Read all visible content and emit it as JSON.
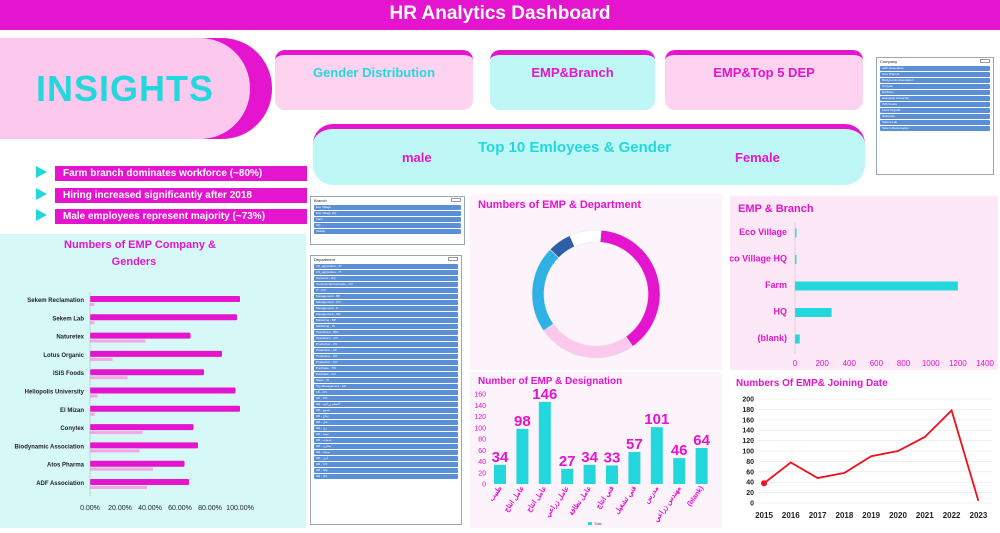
{
  "header": {
    "title": "HR Analytics Dashboard"
  },
  "insights": {
    "title": "INSIGHTS",
    "bullets": [
      "Farm branch dominates workforce (~80%)",
      "Hiring increased significantly after 2018",
      "Male employees represent majority (~73%)"
    ]
  },
  "tabs": {
    "gender": "Gender Distribution",
    "branch": "EMP&Branch",
    "dep": "EMP&Top 5 DEP"
  },
  "top10": {
    "title": "Top 10 Emloyees & Gender",
    "male": "male",
    "female": "Female"
  },
  "colors": {
    "magenta": "#e414cf",
    "cyan": "#23d8dc",
    "pink_light": "#fdc8ee",
    "slicer_blue": "#5b8fd6"
  },
  "slicers": {
    "company": {
      "header": "Company",
      "items": [
        "ADF Association",
        "Atos Pharma",
        "Biodynamic Association",
        "Conytex",
        "El Mizan",
        "Heliopolis University",
        "ISIS Foods",
        "Lotus Organic",
        "Naturetex",
        "Sekem Lab",
        "Sekem Reclamation"
      ]
    },
    "branch": {
      "header": "Branch",
      "items": [
        "Eco Village",
        "Eco Village HQ",
        "Farm",
        "HQ",
        "(blank)"
      ]
    },
    "department": {
      "header": "Department",
      "items": [
        "CN_agriculture - IP",
        "CN_agriculture - IT",
        "Accounts - HQ",
        "Commercial/Contracts - CO",
        "IT - CO",
        "Management - BP",
        "Management - CO",
        "Management - IL",
        "Management - SO",
        "Marketing - BP",
        "Marketing - IS",
        "Operations - BIO",
        "Operations - CO",
        "Production - CN",
        "Production - AP",
        "Production - SO",
        "Production - CO",
        "Purchase - TIS",
        "Purchase - CO",
        "Sales - IS",
        "Top Management - ES",
        "LB - CO",
        "AD - CO",
        "HR - أقسام زراعية",
        "HR - تصنيع",
        "HR - إنتاج",
        "HR - نقل",
        "HR - ري",
        "HR - تعبئة",
        "HR - خدمات",
        "HR - مخازن",
        "HR - صيانة",
        "HR - أمن",
        "HR - CO",
        "HR - HQ",
        "HR - SO"
      ]
    }
  },
  "chart_data": [
    {
      "type": "bar",
      "title": "Numbers of EMP Company & Genders",
      "orientation": "horizontal",
      "categories": [
        "Sekem Reclamation",
        "Sekem Lab",
        "Naturetex",
        "Lotus Organic",
        "ISIS Foods",
        "Heliopolis University",
        "El Mizan",
        "Conytex",
        "Biodynamic Association",
        "Atos Pharma",
        "ADF Association"
      ],
      "series": [
        {
          "values": [
            1.0,
            0.98,
            0.67,
            0.88,
            0.76,
            0.97,
            1.0,
            0.69,
            0.72,
            0.63,
            0.66
          ]
        },
        {
          "values": [
            0.03,
            0.03,
            0.37,
            0.15,
            0.25,
            0.05,
            0.03,
            0.35,
            0.33,
            0.42,
            0.38
          ]
        }
      ],
      "x_ticks": [
        "0.00%",
        "20.00%",
        "40.00%",
        "60.00%",
        "80.00%",
        "100.00%"
      ],
      "xlim": [
        0,
        1
      ]
    },
    {
      "type": "pie",
      "title": "Numbers of EMP & Department",
      "slices": [
        {
          "label": "",
          "value": 39,
          "color": "#e414cf"
        },
        {
          "label": "",
          "value": 25,
          "color": "#fdc8ee"
        },
        {
          "label": "",
          "value": 22,
          "color": "#2eb2e6"
        },
        {
          "label": "",
          "value": 6,
          "color": "#2e5fa6"
        },
        {
          "label": "",
          "value": 8,
          "color": "#ffffff"
        }
      ]
    },
    {
      "type": "bar",
      "title": "Number of EMP & Designation",
      "categories": [
        "طبيب",
        "عامل انتاج",
        "عامل انتاج",
        "عامل زراعي",
        "عامل نظافة",
        "فني انتاج",
        "فني تشغيل",
        "مدرس",
        "مهندس زراعي",
        "(blank)"
      ],
      "values": [
        34,
        98,
        146,
        27,
        34,
        33,
        57,
        101,
        46,
        64
      ],
      "y_ticks": [
        0,
        20,
        40,
        60,
        80,
        100,
        120,
        140,
        160
      ],
      "ylim": [
        0,
        160
      ],
      "legend": "Total"
    },
    {
      "type": "bar",
      "title": "EMP & Branch",
      "orientation": "horizontal",
      "categories": [
        "Eco Village",
        "Eco Village HQ",
        "Farm",
        "HQ",
        "(blank)"
      ],
      "values": [
        8,
        5,
        1200,
        270,
        35
      ],
      "x_ticks": [
        0,
        200,
        400,
        600,
        800,
        1000,
        1200,
        1400
      ],
      "xlim": [
        0,
        1400
      ]
    },
    {
      "type": "line",
      "title": "Numbers Of EMP& Joining Date",
      "x": [
        "2015",
        "2016",
        "2017",
        "2018",
        "2019",
        "2020",
        "2021",
        "2022",
        "2023"
      ],
      "values": [
        38,
        78,
        48,
        58,
        90,
        100,
        127,
        178,
        4
      ],
      "y_ticks": [
        0,
        20,
        40,
        60,
        80,
        100,
        120,
        140,
        160,
        180,
        200
      ],
      "ylim": [
        0,
        200
      ]
    }
  ]
}
